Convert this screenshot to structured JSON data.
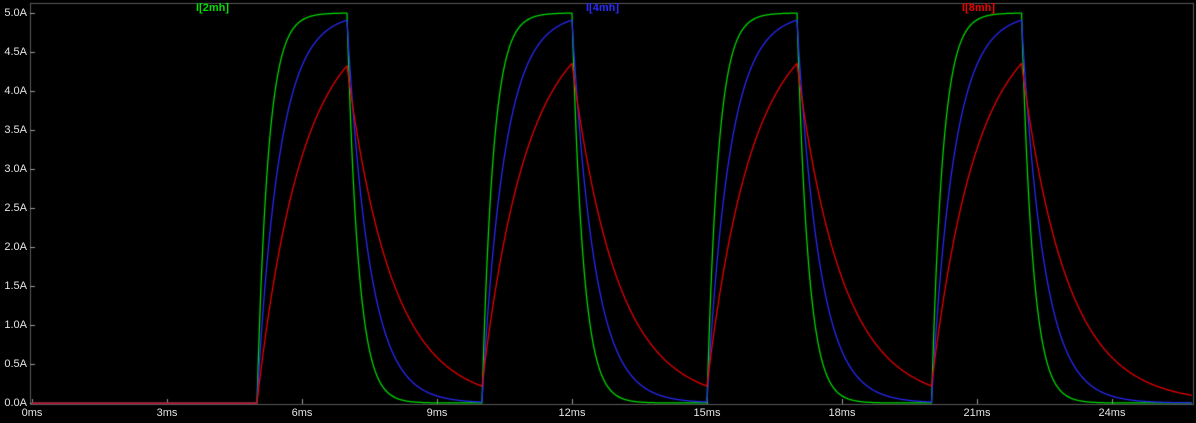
{
  "app": {
    "kind": "waveform-viewer",
    "background": "#000000"
  },
  "colors": {
    "background": "#000000",
    "frame": "#5a5a5a",
    "tick": "#9a9a9a",
    "axis_text": "#e4e4e4"
  },
  "chart_data": {
    "type": "line",
    "x_unit": "ms",
    "y_unit": "A",
    "xlim": [
      0,
      25.8
    ],
    "ylim": [
      0,
      5
    ],
    "grid": false,
    "legend_position": "top",
    "x_ticks": [
      {
        "label": "0ms",
        "value": 0
      },
      {
        "label": "3ms",
        "value": 3
      },
      {
        "label": "6ms",
        "value": 6
      },
      {
        "label": "9ms",
        "value": 9
      },
      {
        "label": "12ms",
        "value": 12
      },
      {
        "label": "15ms",
        "value": 15
      },
      {
        "label": "18ms",
        "value": 18
      },
      {
        "label": "21ms",
        "value": 21
      },
      {
        "label": "24ms",
        "value": 24
      }
    ],
    "y_ticks": [
      {
        "label": "5.0A",
        "value": 5.0
      },
      {
        "label": "4.5A",
        "value": 4.5
      },
      {
        "label": "4.0A",
        "value": 4.0
      },
      {
        "label": "3.5A",
        "value": 3.5
      },
      {
        "label": "3.0A",
        "value": 3.0
      },
      {
        "label": "2.5A",
        "value": 2.5
      },
      {
        "label": "2.0A",
        "value": 2.0
      },
      {
        "label": "1.5A",
        "value": 1.5
      },
      {
        "label": "1.0A",
        "value": 1.0
      },
      {
        "label": "0.5A",
        "value": 0.5
      },
      {
        "label": "0.0A",
        "value": 0.0
      }
    ],
    "series": [
      {
        "name": "I[2mh]",
        "color": "#00dd00",
        "tau_ms": 0.25,
        "peak_A": 5.0
      },
      {
        "name": "I[4mh]",
        "color": "#2a2aff",
        "tau_ms": 0.5,
        "peak_A": 4.91
      },
      {
        "name": "I[8mh]",
        "color": "#ee0000",
        "tau_ms": 1.0,
        "peak_A": 4.32
      }
    ],
    "excitation": {
      "type": "pulse",
      "i_on_A": 5.0,
      "t_start_ms": 5.0,
      "t_on_ms": 2.0,
      "period_ms": 5.0,
      "num_pulses": 4
    },
    "sim_dt_ms": 0.01
  }
}
